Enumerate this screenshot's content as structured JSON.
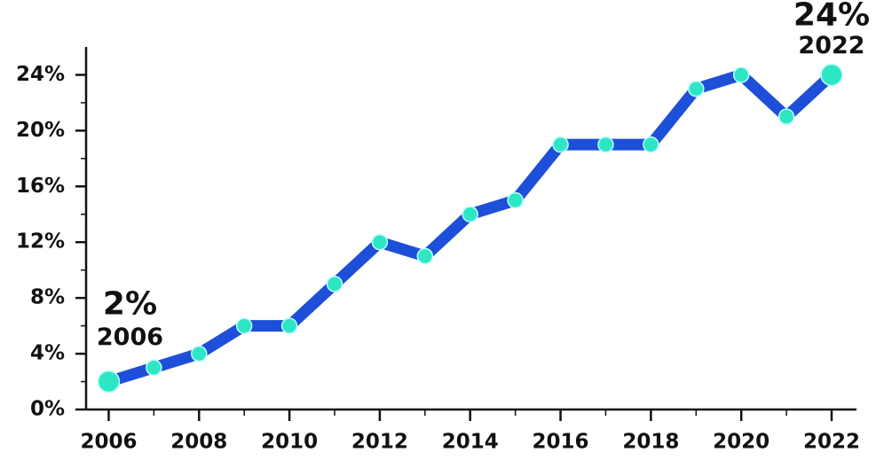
{
  "chart_data": {
    "type": "line",
    "x": [
      2006,
      2007,
      2008,
      2009,
      2010,
      2011,
      2012,
      2013,
      2014,
      2015,
      2016,
      2017,
      2018,
      2019,
      2020,
      2021,
      2022
    ],
    "series": [
      {
        "color": "#1d4fd8",
        "values": [
          2,
          3,
          4,
          6,
          6,
          9,
          12,
          11,
          14,
          15,
          19,
          19,
          19,
          23,
          24,
          21,
          24
        ]
      }
    ],
    "marker_color": "#2ee6c4",
    "xlim": [
      2005.5,
      2022.55
    ],
    "xticks": [
      2006,
      2008,
      2010,
      2012,
      2014,
      2016,
      2018,
      2020,
      2022
    ],
    "ylim": [
      0,
      26
    ],
    "yticks": [
      {
        "value": 0,
        "label": "0%"
      },
      {
        "value": 4,
        "label": "4%"
      },
      {
        "value": 8,
        "label": "8%"
      },
      {
        "value": 12,
        "label": "12%"
      },
      {
        "value": 16,
        "label": "16%"
      },
      {
        "value": 20,
        "label": "20%"
      },
      {
        "value": 24,
        "label": "24%"
      }
    ],
    "yminorticks": [
      2,
      6,
      10,
      14,
      18,
      22
    ],
    "annotations": [
      {
        "label": "2%",
        "year": "2006",
        "x": 2006,
        "y": 2
      },
      {
        "label": "24%",
        "year": "2022",
        "x": 2022,
        "y": 24
      }
    ]
  }
}
